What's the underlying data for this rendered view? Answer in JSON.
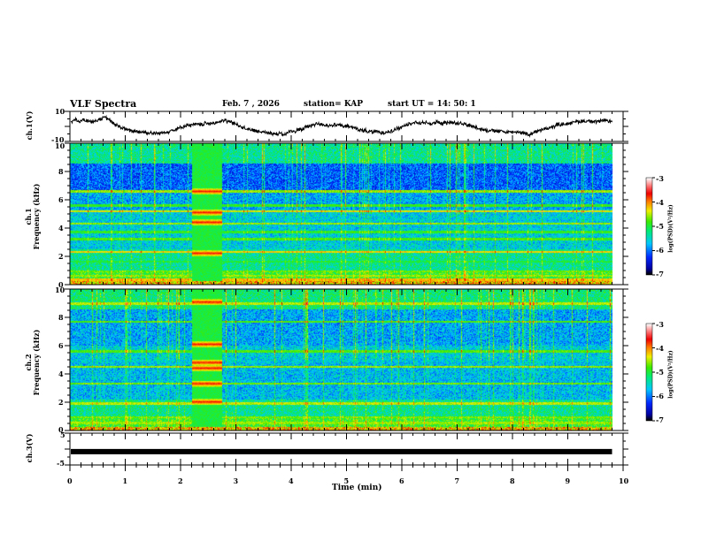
{
  "header": {
    "title": "VLF Spectra",
    "date": "Feb. 7  , 2026",
    "station": "station= KAP",
    "start": "start  UT  =   14: 50: 1"
  },
  "colors": {
    "waveform": "#000000",
    "axis": "#000000",
    "background": "#ffffff"
  },
  "chart_data": [
    {
      "type": "line",
      "name": "ch1-waveform",
      "ylabel": "ch.1(V)",
      "ylim": [
        -10,
        10
      ],
      "yticks": [
        "10",
        "-10"
      ],
      "xlim": [
        0,
        10
      ],
      "data_end_min": 9.8,
      "description_values": {
        "segments_min": [
          0,
          0.65,
          1.0,
          1.6,
          2.1,
          2.8,
          3.3,
          3.9,
          4.5,
          5.0,
          5.6,
          6.2,
          6.9,
          7.5,
          8.3,
          8.9,
          9.4,
          9.8
        ],
        "levels_V": [
          4,
          5,
          -2,
          -5,
          0,
          4,
          -3,
          -5,
          2,
          0,
          -5,
          2,
          3,
          -2,
          -5,
          2,
          4,
          3
        ]
      }
    },
    {
      "type": "heatmap",
      "name": "ch1-spectrogram",
      "ylabel_line1": "ch.1",
      "ylabel_line2": "Frequency  (kHz)",
      "ylim": [
        0,
        10
      ],
      "yticks": [
        "0",
        "2",
        "4",
        "6",
        "8",
        "10"
      ],
      "xlim": [
        0,
        10
      ],
      "data_end_min": 9.8,
      "burst_min": [
        2.2,
        2.75
      ],
      "bands_kHz": [
        {
          "f": 0.3,
          "level": -4.2
        },
        {
          "f": 0.6,
          "level": -4.6
        },
        {
          "f": 0.9,
          "level": -4.8
        },
        {
          "f": 1.6,
          "level": -5.0
        },
        {
          "f": 2.3,
          "level": -4.3
        },
        {
          "f": 3.2,
          "level": -4.8
        },
        {
          "f": 3.7,
          "level": -4.9
        },
        {
          "f": 4.3,
          "level": -4.6
        },
        {
          "f": 5.2,
          "level": -4.4
        },
        {
          "f": 5.6,
          "level": -4.9
        },
        {
          "f": 6.6,
          "level": -4.6
        }
      ],
      "burst_bands_kHz": [
        2.2,
        4.4,
        5.1,
        6.6
      ]
    },
    {
      "type": "heatmap",
      "name": "ch2-spectrogram",
      "ylabel_line1": "ch.2",
      "ylabel_line2": "Frequency  (kHz)",
      "ylim": [
        0,
        10
      ],
      "yticks": [
        "0",
        "2",
        "4",
        "6",
        "8",
        "10"
      ],
      "xlim": [
        0,
        10
      ],
      "data_end_min": 9.8,
      "burst_min": [
        2.2,
        2.75
      ],
      "bands_kHz": [
        {
          "f": 0.5,
          "level": -4.6
        },
        {
          "f": 0.9,
          "level": -4.7
        },
        {
          "f": 1.9,
          "level": -4.5
        },
        {
          "f": 3.3,
          "level": -4.7
        },
        {
          "f": 4.5,
          "level": -4.6
        },
        {
          "f": 5.6,
          "level": -4.8
        },
        {
          "f": 7.7,
          "level": -4.8
        },
        {
          "f": 9.0,
          "level": -4.5
        }
      ],
      "burst_bands_kHz": [
        2.0,
        3.3,
        4.4,
        4.8,
        6.1,
        9.1
      ]
    },
    {
      "type": "line",
      "name": "ch3-waveform",
      "ylabel": "ch.3(V)",
      "ylim": [
        -5,
        5
      ],
      "yticks": [
        "5",
        "-5"
      ],
      "xlim": [
        0,
        10
      ],
      "data_end_min": 9.8,
      "level_V": -0.8
    }
  ],
  "colorbar": {
    "label": "log(PSD)(V²/Hz)",
    "range": [
      -7,
      -3
    ],
    "ticks": [
      "-3",
      "-4",
      "-5",
      "-6",
      "-7"
    ]
  },
  "xaxis": {
    "label": "Time  (min)",
    "ticks": [
      "0",
      "1",
      "2",
      "3",
      "4",
      "5",
      "6",
      "7",
      "8",
      "9",
      "10"
    ]
  }
}
